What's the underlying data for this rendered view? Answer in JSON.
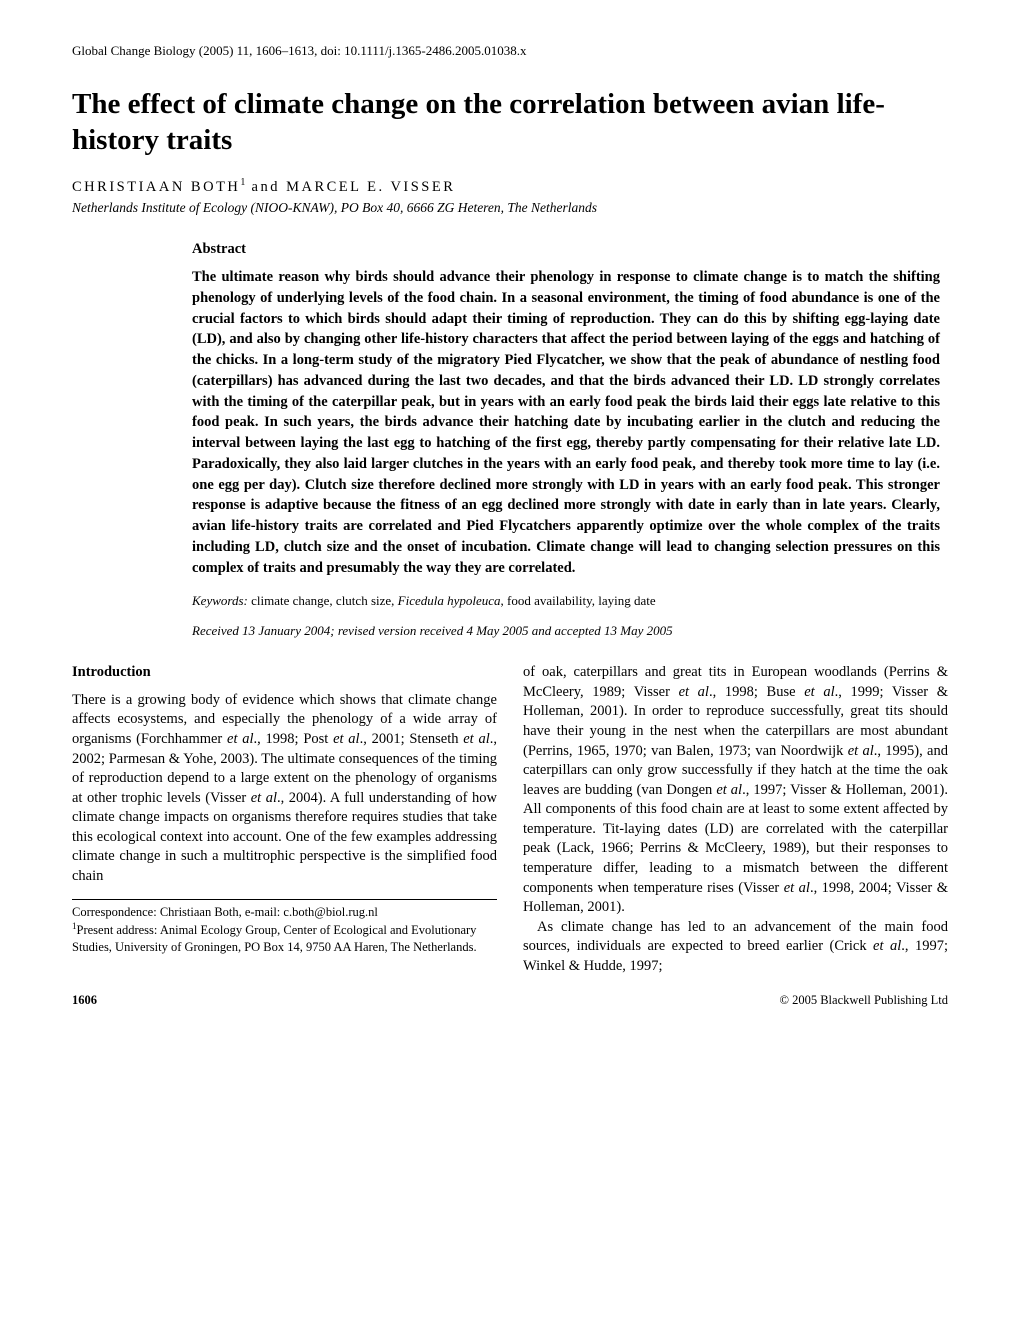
{
  "header": {
    "journal_line": "Global Change Biology (2005) 11, 1606–1613, doi: 10.1111/j.1365-2486.2005.01038.x"
  },
  "title": "The effect of climate change on the correlation between avian life-history traits",
  "authors_html": "CHRISTIAAN BOTH",
  "author_sup": "1",
  "authors_tail": " and MARCEL E. VISSER",
  "affiliation": "Netherlands Institute of Ecology (NIOO-KNAW), PO Box 40, 6666 ZG Heteren, The Netherlands",
  "abstract": {
    "heading": "Abstract",
    "body": "The ultimate reason why birds should advance their phenology in response to climate change is to match the shifting phenology of underlying levels of the food chain. In a seasonal environment, the timing of food abundance is one of the crucial factors to which birds should adapt their timing of reproduction. They can do this by shifting egg-laying date (LD), and also by changing other life-history characters that affect the period between laying of the eggs and hatching of the chicks. In a long-term study of the migratory Pied Flycatcher, we show that the peak of abundance of nestling food (caterpillars) has advanced during the last two decades, and that the birds advanced their LD. LD strongly correlates with the timing of the caterpillar peak, but in years with an early food peak the birds laid their eggs late relative to this food peak. In such years, the birds advance their hatching date by incubating earlier in the clutch and reducing the interval between laying the last egg to hatching of the first egg, thereby partly compensating for their relative late LD. Paradoxically, they also laid larger clutches in the years with an early food peak, and thereby took more time to lay (i.e. one egg per day). Clutch size therefore declined more strongly with LD in years with an early food peak. This stronger response is adaptive because the fitness of an egg declined more strongly with date in early than in late years. Clearly, avian life-history traits are correlated and Pied Flycatchers apparently optimize over the whole complex of the traits including LD, clutch size and the onset of incubation. Climate change will lead to changing selection pressures on this complex of traits and presumably the way they are correlated."
  },
  "keywords": {
    "label": "Keywords:",
    "pre": " climate change, clutch size, ",
    "italic": "Ficedula hypoleuca",
    "post": ", food availability, laying date"
  },
  "received": "Received 13 January 2004; revised version received 4 May 2005 and accepted 13 May 2005",
  "intro_heading": "Introduction",
  "col_left_p1_a": "There is a growing body of evidence which shows that climate change affects ecosystems, and especially the phenology of a wide array of organisms (Forchhammer ",
  "col_left_p1_i1": "et al",
  "col_left_p1_b": "., 1998; Post ",
  "col_left_p1_i2": "et al",
  "col_left_p1_c": "., 2001; Stenseth ",
  "col_left_p1_i3": "et al",
  "col_left_p1_d": "., 2002; Parmesan & Yohe, 2003). The ultimate consequences of the timing of reproduction depend to a large extent on the phenology of organisms at other trophic levels (Visser ",
  "col_left_p1_i4": "et al",
  "col_left_p1_e": "., 2004). A full understanding of how climate change impacts on organisms therefore requires studies that take this ecological context into account. One of the few examples addressing climate change in such a multitrophic perspective is the simplified food chain",
  "corr": {
    "line1": "Correspondence: Christiaan Both, e-mail: c.both@biol.rug.nl",
    "sup": "1",
    "line2": "Present address: Animal Ecology Group, Center of Ecological and Evolutionary Studies, University of Groningen, PO Box 14, 9750 AA Haren, The Netherlands."
  },
  "col_right_p1_a": "of oak, caterpillars and great tits in European woodlands (Perrins & McCleery, 1989; Visser ",
  "col_right_p1_i1": "et al",
  "col_right_p1_b": "., 1998; Buse ",
  "col_right_p1_i2": "et al",
  "col_right_p1_c": "., 1999; Visser & Holleman, 2001). In order to reproduce successfully, great tits should have their young in the nest when the caterpillars are most abundant (Perrins, 1965, 1970; van Balen, 1973; van Noordwijk ",
  "col_right_p1_i3": "et al",
  "col_right_p1_d": "., 1995), and caterpillars can only grow successfully if they hatch at the time the oak leaves are budding (van Dongen ",
  "col_right_p1_i4": "et al",
  "col_right_p1_e": "., 1997; Visser & Holleman, 2001). All components of this food chain are at least to some extent affected by temperature. Tit-laying dates (LD) are correlated with the caterpillar peak (Lack, 1966; Perrins & McCleery, 1989), but their responses to temperature differ, leading to a mismatch between the different components when temperature rises (Visser ",
  "col_right_p1_i5": "et al",
  "col_right_p1_f": "., 1998, 2004; Visser & Holleman, 2001).",
  "col_right_p2_a": "As climate change has led to an advancement of the main food sources, individuals are expected to breed earlier (Crick ",
  "col_right_p2_i1": "et al",
  "col_right_p2_b": "., 1997; Winkel & Hudde, 1997;",
  "footer": {
    "page": "1606",
    "copyright": "© 2005 Blackwell Publishing Ltd"
  }
}
